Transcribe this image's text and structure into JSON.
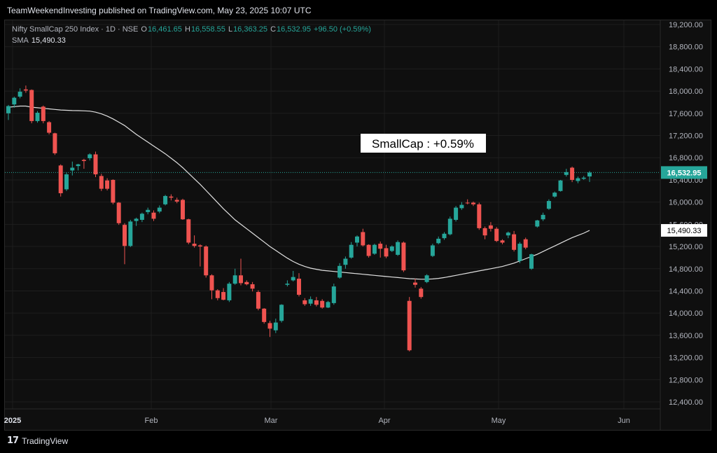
{
  "header": {
    "text": "TeamWeekendInvesting published on TradingView.com, May 23, 2025 10:07 UTC"
  },
  "legend": {
    "symbol": "Nifty SmallCap 250 Index · 1D · NSE",
    "o_label": "O",
    "o_value": "16,461.65",
    "h_label": "H",
    "h_value": "16,558.55",
    "l_label": "L",
    "l_value": "16,363.25",
    "c_label": "C",
    "c_value": "16,532.95",
    "change": "+96.50 (+0.59%)",
    "sma_label": "SMA",
    "sma_value": "15,490.33"
  },
  "annotation": "SmallCap : +0.59%",
  "footer": {
    "brand": "TradingView",
    "logo_glyph": "17"
  },
  "colors": {
    "up": "#26a69a",
    "down": "#ef5350",
    "sma": "#e0e0e0",
    "background": "#0f0f0f",
    "grid": "#1e1e1e"
  },
  "chart_data": {
    "type": "candlestick",
    "price_axis_ticks": [
      "19,200.00",
      "18,800.00",
      "18,400.00",
      "18,000.00",
      "17,600.00",
      "17,200.00",
      "16,800.00",
      "16,400.00",
      "16,000.00",
      "15,600.00",
      "15,200.00",
      "14,800.00",
      "14,400.00",
      "14,000.00",
      "13,600.00",
      "13,200.00",
      "12,800.00",
      "12,400.00"
    ],
    "time_axis_ticks": [
      "2025",
      "Feb",
      "Mar",
      "Apr",
      "May",
      "Jun"
    ],
    "ylim": [
      12200,
      19300
    ],
    "last_price_label": "16,532.95",
    "sma_label": "15,490.33",
    "series": [
      {
        "name": "Nifty SmallCap 250 Index",
        "candles": [
          {
            "o": 17600,
            "h": 17750,
            "l": 17480,
            "c": 17730
          },
          {
            "o": 17760,
            "h": 17900,
            "l": 17700,
            "c": 17880
          },
          {
            "o": 17900,
            "h": 18050,
            "l": 17870,
            "c": 17990
          },
          {
            "o": 18030,
            "h": 18100,
            "l": 17970,
            "c": 18010
          },
          {
            "o": 18020,
            "h": 18030,
            "l": 17420,
            "c": 17460
          },
          {
            "o": 17460,
            "h": 17640,
            "l": 17430,
            "c": 17610
          },
          {
            "o": 17720,
            "h": 17740,
            "l": 17420,
            "c": 17460
          },
          {
            "o": 17440,
            "h": 17460,
            "l": 17220,
            "c": 17250
          },
          {
            "o": 17240,
            "h": 17250,
            "l": 16850,
            "c": 16880
          },
          {
            "o": 16660,
            "h": 16680,
            "l": 16100,
            "c": 16160
          },
          {
            "o": 16230,
            "h": 16530,
            "l": 16200,
            "c": 16500
          },
          {
            "o": 16570,
            "h": 16730,
            "l": 16480,
            "c": 16620
          },
          {
            "o": 16650,
            "h": 16690,
            "l": 16570,
            "c": 16680
          },
          {
            "o": 16760,
            "h": 16780,
            "l": 16600,
            "c": 16740
          },
          {
            "o": 16790,
            "h": 16880,
            "l": 16750,
            "c": 16860
          },
          {
            "o": 16860,
            "h": 16910,
            "l": 16450,
            "c": 16500
          },
          {
            "o": 16470,
            "h": 16510,
            "l": 16200,
            "c": 16240
          },
          {
            "o": 16390,
            "h": 16430,
            "l": 16210,
            "c": 16240
          },
          {
            "o": 16400,
            "h": 16410,
            "l": 15960,
            "c": 15990
          },
          {
            "o": 15990,
            "h": 16000,
            "l": 15590,
            "c": 15620
          },
          {
            "o": 15590,
            "h": 15620,
            "l": 14880,
            "c": 15210
          },
          {
            "o": 15210,
            "h": 15680,
            "l": 15190,
            "c": 15650
          },
          {
            "o": 15660,
            "h": 15720,
            "l": 15570,
            "c": 15700
          },
          {
            "o": 15680,
            "h": 15810,
            "l": 15640,
            "c": 15790
          },
          {
            "o": 15820,
            "h": 15900,
            "l": 15780,
            "c": 15860
          },
          {
            "o": 15810,
            "h": 15850,
            "l": 15660,
            "c": 15700
          },
          {
            "o": 15830,
            "h": 15940,
            "l": 15800,
            "c": 15900
          },
          {
            "o": 15960,
            "h": 16130,
            "l": 15940,
            "c": 16110
          },
          {
            "o": 16100,
            "h": 16140,
            "l": 16030,
            "c": 16080
          },
          {
            "o": 16040,
            "h": 16080,
            "l": 15980,
            "c": 16010
          },
          {
            "o": 16040,
            "h": 16060,
            "l": 15680,
            "c": 15690
          },
          {
            "o": 15690,
            "h": 15700,
            "l": 15240,
            "c": 15270
          },
          {
            "o": 15250,
            "h": 15400,
            "l": 15180,
            "c": 15210
          },
          {
            "o": 15220,
            "h": 15240,
            "l": 14840,
            "c": 15200
          },
          {
            "o": 15200,
            "h": 15220,
            "l": 14640,
            "c": 14680
          },
          {
            "o": 14680,
            "h": 14700,
            "l": 14250,
            "c": 14410
          },
          {
            "o": 14410,
            "h": 14430,
            "l": 14230,
            "c": 14270
          },
          {
            "o": 14380,
            "h": 14450,
            "l": 14230,
            "c": 14240
          },
          {
            "o": 14230,
            "h": 14560,
            "l": 14200,
            "c": 14530
          },
          {
            "o": 14530,
            "h": 14800,
            "l": 14510,
            "c": 14680
          },
          {
            "o": 14680,
            "h": 14980,
            "l": 14500,
            "c": 14540
          },
          {
            "o": 14560,
            "h": 14590,
            "l": 14500,
            "c": 14520
          },
          {
            "o": 14520,
            "h": 14560,
            "l": 14390,
            "c": 14440
          },
          {
            "o": 14380,
            "h": 14410,
            "l": 14050,
            "c": 14080
          },
          {
            "o": 14080,
            "h": 14090,
            "l": 13810,
            "c": 13840
          },
          {
            "o": 13820,
            "h": 13860,
            "l": 13570,
            "c": 13720
          },
          {
            "o": 13690,
            "h": 13900,
            "l": 13640,
            "c": 13830
          },
          {
            "o": 13860,
            "h": 14160,
            "l": 13830,
            "c": 14150
          },
          {
            "o": 14510,
            "h": 14590,
            "l": 14480,
            "c": 14530
          },
          {
            "o": 14590,
            "h": 14760,
            "l": 14570,
            "c": 14650
          },
          {
            "o": 14620,
            "h": 14720,
            "l": 14300,
            "c": 14330
          },
          {
            "o": 14230,
            "h": 14270,
            "l": 14130,
            "c": 14160
          },
          {
            "o": 14170,
            "h": 14300,
            "l": 14130,
            "c": 14250
          },
          {
            "o": 14230,
            "h": 14290,
            "l": 14120,
            "c": 14150
          },
          {
            "o": 14220,
            "h": 14250,
            "l": 14080,
            "c": 14100
          },
          {
            "o": 14100,
            "h": 14220,
            "l": 14090,
            "c": 14200
          },
          {
            "o": 14180,
            "h": 14530,
            "l": 14150,
            "c": 14480
          },
          {
            "o": 14640,
            "h": 14900,
            "l": 14620,
            "c": 14850
          },
          {
            "o": 14870,
            "h": 15020,
            "l": 14800,
            "c": 14980
          },
          {
            "o": 15000,
            "h": 15280,
            "l": 14980,
            "c": 15230
          },
          {
            "o": 15270,
            "h": 15400,
            "l": 15200,
            "c": 15380
          },
          {
            "o": 15460,
            "h": 15520,
            "l": 15200,
            "c": 15220
          },
          {
            "o": 15230,
            "h": 15240,
            "l": 15000,
            "c": 15030
          },
          {
            "o": 15070,
            "h": 15250,
            "l": 15050,
            "c": 15230
          },
          {
            "o": 15250,
            "h": 15290,
            "l": 15000,
            "c": 15160
          },
          {
            "o": 15170,
            "h": 15230,
            "l": 14990,
            "c": 15020
          },
          {
            "o": 15120,
            "h": 15220,
            "l": 15100,
            "c": 15200
          },
          {
            "o": 15050,
            "h": 15310,
            "l": 15030,
            "c": 15280
          },
          {
            "o": 15270,
            "h": 15290,
            "l": 14740,
            "c": 14770
          },
          {
            "o": 14220,
            "h": 14290,
            "l": 13310,
            "c": 13330
          },
          {
            "o": 14550,
            "h": 14620,
            "l": 14460,
            "c": 14510
          },
          {
            "o": 14440,
            "h": 14470,
            "l": 14260,
            "c": 14290
          },
          {
            "o": 14560,
            "h": 14700,
            "l": 14540,
            "c": 14680
          },
          {
            "o": 15030,
            "h": 15250,
            "l": 15010,
            "c": 15220
          },
          {
            "o": 15260,
            "h": 15380,
            "l": 15240,
            "c": 15340
          },
          {
            "o": 15350,
            "h": 15460,
            "l": 15320,
            "c": 15430
          },
          {
            "o": 15420,
            "h": 15740,
            "l": 15400,
            "c": 15700
          },
          {
            "o": 15680,
            "h": 15930,
            "l": 15650,
            "c": 15900
          },
          {
            "o": 15890,
            "h": 16000,
            "l": 15860,
            "c": 15950
          },
          {
            "o": 15990,
            "h": 16050,
            "l": 15960,
            "c": 15980
          },
          {
            "o": 15990,
            "h": 16010,
            "l": 15930,
            "c": 15960
          },
          {
            "o": 15960,
            "h": 15990,
            "l": 15500,
            "c": 15530
          },
          {
            "o": 15530,
            "h": 15560,
            "l": 15330,
            "c": 15400
          },
          {
            "o": 15580,
            "h": 15640,
            "l": 15470,
            "c": 15520
          },
          {
            "o": 15520,
            "h": 15550,
            "l": 15280,
            "c": 15300
          },
          {
            "o": 15310,
            "h": 15330,
            "l": 15240,
            "c": 15270
          },
          {
            "o": 15400,
            "h": 15470,
            "l": 15350,
            "c": 15450
          },
          {
            "o": 15420,
            "h": 15480,
            "l": 15110,
            "c": 15140
          },
          {
            "o": 14940,
            "h": 15280,
            "l": 14900,
            "c": 15250
          },
          {
            "o": 15330,
            "h": 15360,
            "l": 15150,
            "c": 15180
          },
          {
            "o": 14800,
            "h": 15070,
            "l": 14780,
            "c": 15060
          },
          {
            "o": 15560,
            "h": 15680,
            "l": 15540,
            "c": 15670
          },
          {
            "o": 15690,
            "h": 15810,
            "l": 15660,
            "c": 15770
          },
          {
            "o": 15880,
            "h": 16050,
            "l": 15860,
            "c": 16020
          },
          {
            "o": 16100,
            "h": 16190,
            "l": 16080,
            "c": 16170
          },
          {
            "o": 16200,
            "h": 16400,
            "l": 16190,
            "c": 16390
          },
          {
            "o": 16490,
            "h": 16600,
            "l": 16460,
            "c": 16540
          },
          {
            "o": 16620,
            "h": 16640,
            "l": 16360,
            "c": 16400
          },
          {
            "o": 16380,
            "h": 16460,
            "l": 16340,
            "c": 16430
          },
          {
            "o": 16420,
            "h": 16470,
            "l": 16400,
            "c": 16440
          },
          {
            "o": 16462,
            "h": 16559,
            "l": 16363,
            "c": 16533
          }
        ]
      },
      {
        "name": "SMA",
        "values": [
          17710,
          17720,
          17730,
          17730,
          17710,
          17700,
          17690,
          17680,
          17670,
          17660,
          17655,
          17650,
          17648,
          17645,
          17640,
          17620,
          17590,
          17550,
          17500,
          17440,
          17380,
          17300,
          17220,
          17150,
          17080,
          17010,
          16940,
          16870,
          16790,
          16710,
          16620,
          16520,
          16420,
          16320,
          16210,
          16100,
          15990,
          15880,
          15780,
          15680,
          15600,
          15520,
          15440,
          15360,
          15280,
          15200,
          15130,
          15060,
          14990,
          14930,
          14880,
          14840,
          14810,
          14790,
          14770,
          14760,
          14750,
          14740,
          14730,
          14720,
          14710,
          14700,
          14690,
          14680,
          14670,
          14660,
          14650,
          14640,
          14630,
          14620,
          14615,
          14610,
          14610,
          14615,
          14625,
          14640,
          14660,
          14680,
          14700,
          14720,
          14740,
          14760,
          14780,
          14800,
          14820,
          14840,
          14870,
          14900,
          14940,
          14980,
          15020,
          15060,
          15110,
          15160,
          15210,
          15260,
          15310,
          15360,
          15400,
          15440,
          15490
        ]
      }
    ]
  }
}
